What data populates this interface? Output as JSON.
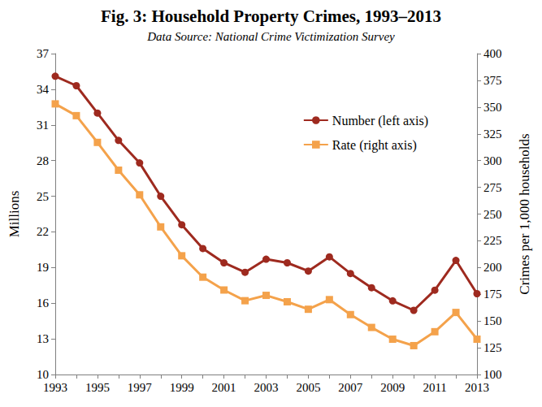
{
  "chart_data": {
    "type": "line",
    "title": "Fig. 3: Household Property Crimes, 1993–2013",
    "subtitle": "Data Source: National Crime Victimization Survey",
    "categories": [
      "1993",
      null,
      "1995",
      null,
      "1997",
      null,
      "1999",
      null,
      "2001",
      null,
      "2003",
      null,
      "2005",
      null,
      "2007",
      null,
      "2009",
      null,
      "2011",
      null,
      "2013"
    ],
    "series": [
      {
        "name": "Number (left axis)",
        "color": "#9E2A1F",
        "marker": "circle",
        "values": [
          35.1,
          34.3,
          32.0,
          29.7,
          27.8,
          25.0,
          22.6,
          20.6,
          19.4,
          18.6,
          19.7,
          19.4,
          18.7,
          19.9,
          18.5,
          17.3,
          16.2,
          15.4,
          17.1,
          19.6,
          16.8
        ]
      },
      {
        "name": "Rate (right axis)",
        "color": "#F4A24B",
        "marker": "square",
        "axis": "y2",
        "values": [
          353,
          342,
          317,
          291,
          268,
          238,
          211,
          191,
          179,
          169,
          174,
          168,
          161,
          170,
          156,
          144,
          133,
          127,
          140,
          158,
          133
        ]
      }
    ],
    "ylabel": "Millions",
    "y2label": "Crimes per 1,000 households",
    "ylim": [
      10,
      37
    ],
    "yticks": [
      10,
      13,
      16,
      19,
      22,
      25,
      28,
      31,
      34,
      37
    ],
    "y2lim": [
      100,
      400
    ],
    "y2ticks": [
      100,
      125,
      150,
      175,
      200,
      225,
      250,
      275,
      300,
      325,
      350,
      375,
      400
    ],
    "grid": false,
    "legend": "upper right"
  }
}
